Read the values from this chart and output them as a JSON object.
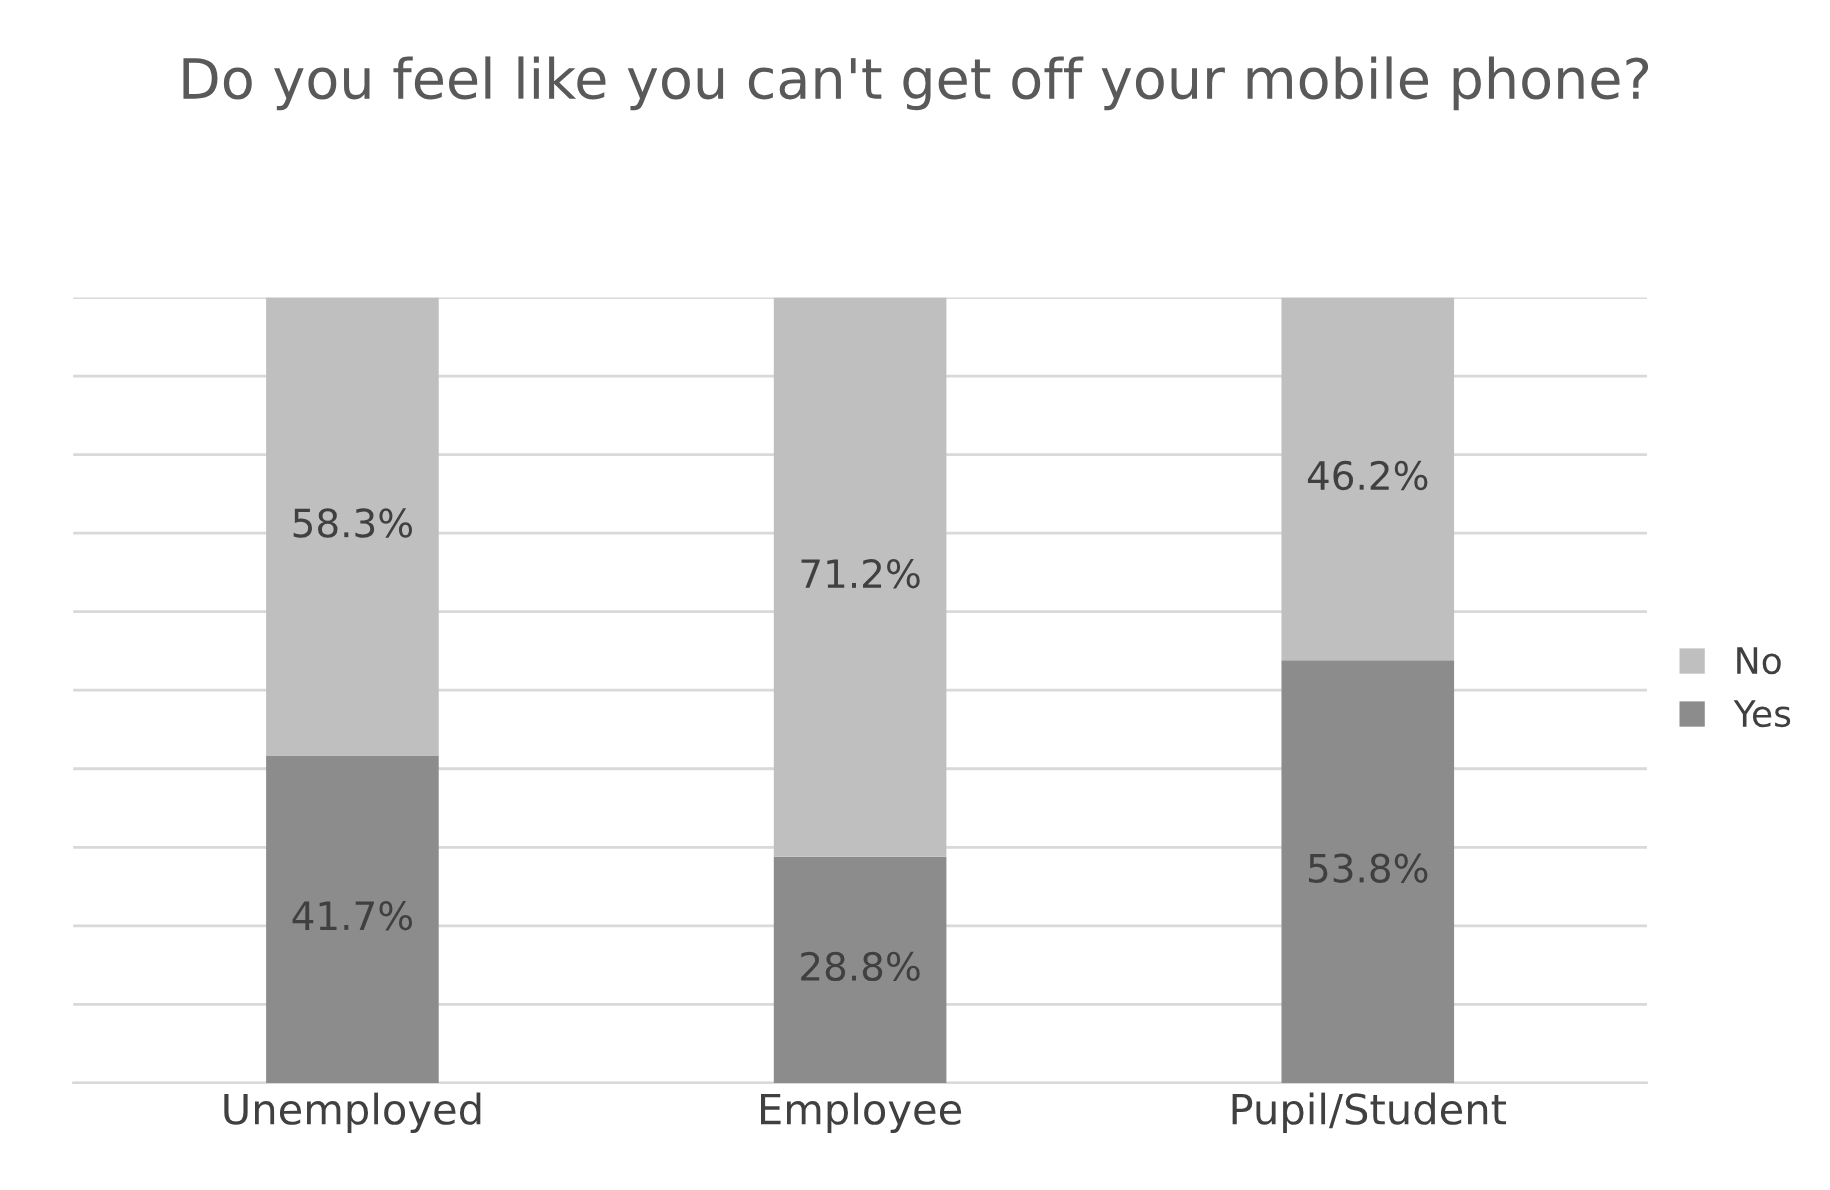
{
  "chart_data": {
    "type": "bar",
    "title": "Do you feel like you can't get off your mobile phone?",
    "categories": [
      "Unemployed",
      "Employee",
      "Pupil/Student"
    ],
    "stacked": true,
    "series": [
      {
        "name": "Yes",
        "color": "#8c8c8c",
        "values": [
          41.7,
          28.8,
          53.8
        ],
        "value_labels": [
          "41.7%",
          "28.8%",
          "53.8%"
        ]
      },
      {
        "name": "No",
        "color": "#bfbfbf",
        "values": [
          58.3,
          71.2,
          46.2
        ],
        "value_labels": [
          "58.3%",
          "71.2%",
          "46.2%"
        ]
      }
    ],
    "ylim": [
      0,
      100
    ],
    "yticks": [
      {
        "value": 0,
        "label": null
      },
      {
        "value": 10,
        "label": null
      },
      {
        "value": 20,
        "label": null
      },
      {
        "value": 30,
        "label": null
      },
      {
        "value": 40,
        "label": null
      },
      {
        "value": 50,
        "label": null
      },
      {
        "value": 60,
        "label": null
      },
      {
        "value": 70,
        "label": null
      },
      {
        "value": 80,
        "label": null
      },
      {
        "value": 90,
        "label": null
      },
      {
        "value": 100,
        "label": null
      }
    ],
    "tick_labels": "x",
    "grid": "y",
    "legend": "right"
  }
}
